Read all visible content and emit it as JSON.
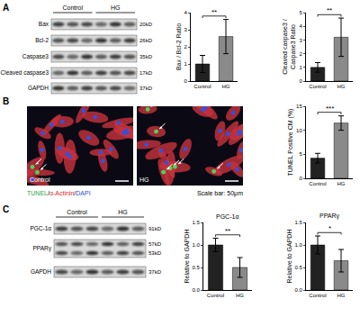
{
  "panel_labels": [
    "A",
    "B",
    "C"
  ],
  "blots": [
    {
      "groups": [
        "Control",
        "HG"
      ],
      "rows": [
        {
          "label": "Bax",
          "kd": [
            "20kD"
          ]
        },
        {
          "label": "Bcl-2",
          "kd": [
            "26kD"
          ]
        },
        {
          "label": "Caspase3",
          "kd": [
            "35kD"
          ]
        },
        {
          "label": "Cleaved caspase3",
          "kd": [
            "17kD"
          ]
        },
        {
          "label": "GAPDH",
          "kd": [
            "37kD"
          ]
        }
      ]
    },
    {
      "groups": [
        "Control",
        "HG"
      ],
      "rows": [
        {
          "label": "PGC-1α",
          "kd": [
            "91kD"
          ]
        },
        {
          "label": "PPARγ",
          "kd": [
            "57kD",
            "53kD"
          ]
        },
        {
          "label": "GAPDH",
          "kd": [
            "37kD"
          ]
        }
      ]
    }
  ],
  "images": {
    "labels": [
      "Control",
      "HG"
    ],
    "stain_legend": [
      {
        "text": "TUNEL",
        "color": "#2ea043"
      },
      {
        "text": "/",
        "color": "#000000"
      },
      {
        "text": "α-Actinin",
        "color": "#d62728"
      },
      {
        "text": "/",
        "color": "#000000"
      },
      {
        "text": "DAPI",
        "color": "#2b4bd1"
      }
    ],
    "scale_bar": "Scale bar: 50μm"
  },
  "chart_data": [
    {
      "type": "bar",
      "y_label": [
        "Bax / Bcl-2 Ratio"
      ],
      "categories": [
        "Control",
        "HG"
      ],
      "values": [
        1.0,
        2.6
      ],
      "errors": [
        0.5,
        1.0
      ],
      "colors": [
        "#222222",
        "#8a8a8a"
      ],
      "ylim": [
        0,
        4
      ],
      "yticks": [
        0,
        1,
        2,
        3,
        4
      ],
      "grid": false,
      "significance": "**"
    },
    {
      "type": "bar",
      "y_label": [
        "Cleaved caspase3 /",
        "Caspase3 Ratio"
      ],
      "categories": [
        "Control",
        "HG"
      ],
      "values": [
        1.0,
        3.2
      ],
      "errors": [
        0.35,
        1.4
      ],
      "colors": [
        "#222222",
        "#8a8a8a"
      ],
      "ylim": [
        0,
        5
      ],
      "yticks": [
        0,
        1,
        2,
        3,
        4,
        5
      ],
      "grid": false,
      "significance": "**"
    },
    {
      "type": "bar",
      "y_label": [
        "TUNEL Positive CM (%)"
      ],
      "categories": [
        "Control",
        "HG"
      ],
      "values": [
        4.2,
        11.5
      ],
      "errors": [
        1.0,
        1.5
      ],
      "colors": [
        "#222222",
        "#8a8a8a"
      ],
      "ylim": [
        0,
        15
      ],
      "yticks": [
        0,
        5,
        10,
        15
      ],
      "grid": false,
      "significance": "***"
    },
    {
      "type": "bar",
      "title": "PGC-1α",
      "y_label": [
        "Relative to GAPDH"
      ],
      "categories": [
        "Control",
        "HG"
      ],
      "values": [
        1.0,
        0.5
      ],
      "errors": [
        0.15,
        0.22
      ],
      "colors": [
        "#222222",
        "#8a8a8a"
      ],
      "ylim": [
        0,
        1.5
      ],
      "yticks": [
        {
          "value": 0,
          "label": "0.0"
        },
        {
          "value": 0.5,
          "label": "0.5"
        },
        {
          "value": 1,
          "label": "1.0"
        },
        {
          "value": 1.5,
          "label": "1.5"
        }
      ],
      "grid": false,
      "significance": "**"
    },
    {
      "type": "bar",
      "title": "PPARγ",
      "y_label": [
        "Relative to GAPDH"
      ],
      "categories": [
        "Control",
        "HG"
      ],
      "values": [
        1.0,
        0.65
      ],
      "errors": [
        0.2,
        0.25
      ],
      "colors": [
        "#222222",
        "#8a8a8a"
      ],
      "ylim": [
        0,
        1.5
      ],
      "yticks": [
        {
          "value": 0,
          "label": "0.0"
        },
        {
          "value": 0.5,
          "label": "0.5"
        },
        {
          "value": 1,
          "label": "1.0"
        },
        {
          "value": 1.5,
          "label": "1.5"
        }
      ],
      "grid": false,
      "significance": "*"
    }
  ]
}
